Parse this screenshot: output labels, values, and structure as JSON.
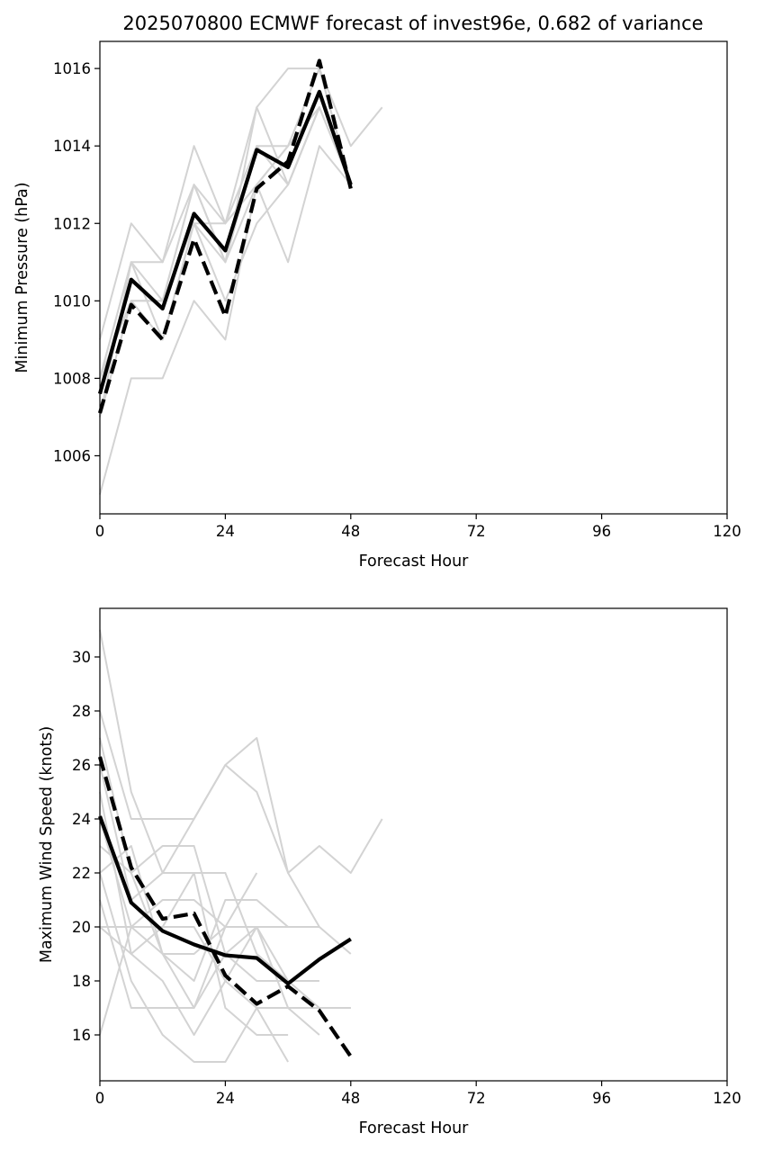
{
  "figure_title": "2025070800 ECMWF forecast of invest96e, 0.682 of variance",
  "colors": {
    "ensemble": "#d3d3d3",
    "mean": "#000000",
    "dashed": "#000000",
    "axes": "#000000"
  },
  "chart_data": [
    {
      "type": "line",
      "title": "2025070800 ECMWF forecast of invest96e, 0.682 of variance",
      "xlabel": "Forecast Hour",
      "ylabel": "Minimum Pressure (hPa)",
      "xlim": [
        0,
        120
      ],
      "ylim": [
        1004.5,
        1016.7
      ],
      "xticks": [
        0,
        24,
        48,
        72,
        96,
        120
      ],
      "yticks": [
        1006,
        1008,
        1010,
        1012,
        1014,
        1016
      ],
      "grid": false,
      "ensemble_members": [
        {
          "x": [
            0,
            6,
            12,
            18,
            24,
            30,
            36,
            42,
            48
          ],
          "y": [
            1005,
            1008,
            1008,
            1010,
            1009,
            1013,
            1011,
            1014,
            1013
          ]
        },
        {
          "x": [
            0,
            6,
            12,
            18,
            24,
            30,
            36,
            42,
            48
          ],
          "y": [
            1009,
            1012,
            1011,
            1014,
            1012,
            1015,
            1016,
            1016,
            1013
          ]
        },
        {
          "x": [
            0,
            6,
            12,
            18,
            24,
            30,
            36,
            42,
            48
          ],
          "y": [
            1008,
            1011,
            1011,
            1013,
            1012,
            1014,
            1013,
            1015,
            1013
          ]
        },
        {
          "x": [
            0,
            6,
            12,
            18,
            24,
            30,
            36,
            42,
            48,
            54
          ],
          "y": [
            1007,
            1010,
            1009,
            1012,
            1011,
            1014,
            1014,
            1016,
            1014,
            1015
          ]
        },
        {
          "x": [
            0,
            6,
            12,
            18,
            24,
            30,
            36,
            42,
            48
          ],
          "y": [
            1008,
            1011,
            1010,
            1013,
            1011,
            1013,
            1014,
            1015,
            1013
          ]
        },
        {
          "x": [
            0,
            6,
            12,
            18,
            24,
            30,
            36,
            42,
            48
          ],
          "y": [
            1008,
            1010,
            1010,
            1012,
            1010,
            1012,
            1013,
            1015,
            1013
          ]
        },
        {
          "x": [
            0,
            6,
            12,
            18,
            24,
            30,
            36,
            42,
            48
          ],
          "y": [
            1007,
            1011,
            1009,
            1012,
            1012,
            1013,
            1014,
            1016,
            1013
          ]
        },
        {
          "x": [
            0,
            6,
            12,
            18,
            24,
            30,
            36,
            42,
            48
          ],
          "y": [
            1008,
            1010,
            1010,
            1013,
            1011,
            1015,
            1013,
            1015,
            1013
          ]
        }
      ],
      "mean": {
        "x": [
          0,
          6,
          12,
          18,
          24,
          30,
          36,
          42,
          48
        ],
        "y": [
          1007.6,
          1010.55,
          1009.8,
          1012.25,
          1011.3,
          1013.9,
          1013.45,
          1015.4,
          1013.0
        ]
      },
      "dashed": {
        "x": [
          0,
          6,
          12,
          18,
          24,
          30,
          36,
          42,
          48
        ],
        "y": [
          1007.1,
          1009.9,
          1009.0,
          1011.6,
          1009.6,
          1012.9,
          1013.6,
          1016.2,
          1012.9
        ]
      }
    },
    {
      "type": "line",
      "title": "",
      "xlabel": "Forecast Hour",
      "ylabel": "Maximum Wind Speed (knots)",
      "xlim": [
        0,
        120
      ],
      "ylim": [
        14.3,
        31.8
      ],
      "xticks": [
        0,
        24,
        48,
        72,
        96,
        120
      ],
      "yticks": [
        16,
        18,
        20,
        22,
        24,
        26,
        28,
        30
      ],
      "grid": false,
      "ensemble_members": [
        {
          "x": [
            0,
            6,
            12,
            18,
            24,
            30,
            36,
            42,
            48,
            54
          ],
          "y": [
            31,
            25,
            22,
            24,
            26,
            27,
            22,
            23,
            22,
            24
          ]
        },
        {
          "x": [
            0,
            6,
            12,
            18,
            24,
            30,
            36,
            42,
            48
          ],
          "y": [
            28,
            24,
            24,
            24,
            26,
            25,
            22,
            20,
            19
          ]
        },
        {
          "x": [
            0,
            6,
            12,
            18,
            24,
            30,
            36
          ],
          "y": [
            16,
            20,
            19,
            19,
            20,
            20,
            20
          ]
        },
        {
          "x": [
            0,
            6,
            12,
            18,
            24,
            30,
            36
          ],
          "y": [
            22,
            18,
            16,
            15,
            15,
            17,
            15
          ]
        },
        {
          "x": [
            0,
            6,
            12,
            18,
            24,
            30,
            36,
            42,
            48
          ],
          "y": [
            27,
            22,
            23,
            23,
            19,
            20,
            17,
            17,
            17
          ]
        },
        {
          "x": [
            0,
            6,
            12,
            18,
            24,
            30,
            36,
            42
          ],
          "y": [
            26,
            21,
            22,
            22,
            22,
            19,
            18,
            18
          ]
        },
        {
          "x": [
            0,
            6,
            12,
            18,
            24,
            30,
            36,
            42
          ],
          "y": [
            25,
            19,
            18,
            16,
            18,
            17,
            17,
            16
          ]
        },
        {
          "x": [
            0,
            6,
            12,
            18,
            24,
            30
          ],
          "y": [
            24,
            20,
            21,
            21,
            20,
            22
          ]
        },
        {
          "x": [
            0,
            6,
            12,
            18,
            24,
            30,
            36,
            42,
            48
          ],
          "y": [
            23,
            22,
            19,
            17,
            19,
            18,
            18,
            17,
            17
          ]
        },
        {
          "x": [
            0,
            6,
            12,
            18,
            24,
            30,
            36
          ],
          "y": [
            21,
            17,
            17,
            17,
            20,
            20,
            20
          ]
        },
        {
          "x": [
            0,
            6,
            12,
            18,
            24,
            30,
            36
          ],
          "y": [
            20,
            19,
            20,
            22,
            17,
            16,
            16
          ]
        },
        {
          "x": [
            0,
            6,
            12,
            18,
            24,
            30,
            36,
            42
          ],
          "y": [
            22,
            23,
            19,
            18,
            21,
            21,
            20,
            20
          ]
        },
        {
          "x": [
            0,
            6,
            12,
            18,
            24,
            30,
            36
          ],
          "y": [
            20,
            20,
            20,
            20,
            18,
            20,
            18
          ]
        }
      ],
      "mean": {
        "x": [
          0,
          6,
          12,
          18,
          24,
          30,
          36,
          42,
          48
        ],
        "y": [
          24.1,
          20.9,
          19.85,
          19.35,
          18.95,
          18.85,
          17.9,
          18.8,
          19.55
        ]
      },
      "dashed": {
        "x": [
          0,
          6,
          12,
          18,
          24,
          30,
          36,
          42,
          48
        ],
        "y": [
          26.3,
          22.2,
          20.3,
          20.5,
          18.2,
          17.15,
          17.8,
          16.9,
          15.2
        ]
      }
    }
  ]
}
